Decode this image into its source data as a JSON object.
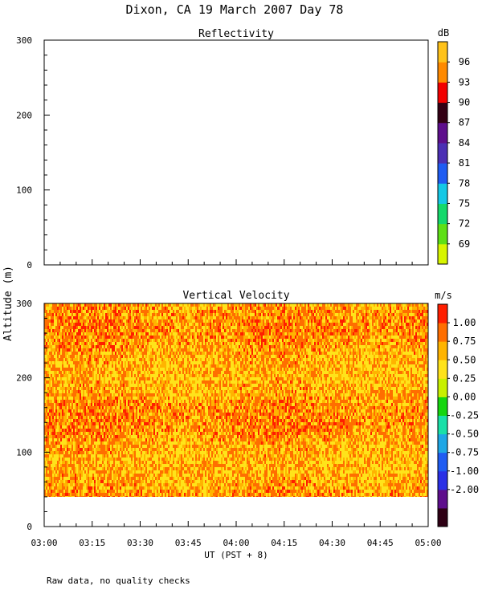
{
  "title": "Dixon, CA 19 March 2007  Day  78",
  "footnote": "Raw data, no quality checks",
  "colors": {
    "reflectivity_scale": [
      "#d7f500",
      "#5ee015",
      "#14d96b",
      "#14c8e6",
      "#1f5cf2",
      "#4b2fb4",
      "#5e0e8c",
      "#330014",
      "#f20000",
      "#ff8a00",
      "#ffc21a"
    ],
    "velocity_scale": [
      "#2e0014",
      "#5e0e8c",
      "#2a30e6",
      "#1f5cf2",
      "#1ea7e6",
      "#19e0a8",
      "#15d60f",
      "#c8f000",
      "#ffe31a",
      "#ffb400",
      "#ff6e00",
      "#ff1e00"
    ]
  },
  "chart_data": [
    {
      "type": "heatmap",
      "title": "Reflectivity",
      "xlabel": "",
      "ylabel": "",
      "ylim": [
        0,
        300
      ],
      "yticks": [
        "0",
        "100",
        "200",
        "300"
      ],
      "xticks": [],
      "colorbar_unit": "dB",
      "colorbar_labels": [
        "96",
        "93",
        "90",
        "87",
        "84",
        "81",
        "78",
        "75",
        "72",
        "69"
      ],
      "values": []
    },
    {
      "type": "heatmap",
      "title": "Vertical Velocity",
      "xlabel": "UT  (PST + 8)",
      "ylabel": "Altitude (m)",
      "ylim": [
        0,
        300
      ],
      "xlim": [
        "03:00",
        "05:00"
      ],
      "yticks": [
        "0",
        "100",
        "200",
        "300"
      ],
      "xticks": [
        "03:00",
        "03:15",
        "03:30",
        "03:45",
        "04:00",
        "04:15",
        "04:30",
        "04:45",
        "05:00"
      ],
      "colorbar_unit": "m/s",
      "colorbar_labels": [
        "1.00",
        "0.75",
        "0.50",
        "0.25",
        "0.00",
        "-0.25",
        "-0.50",
        "-0.75",
        "-1.00",
        "-2.00"
      ],
      "data_altitude_range": [
        40,
        300
      ],
      "typical_value_range": [
        0.5,
        1.0
      ]
    }
  ]
}
